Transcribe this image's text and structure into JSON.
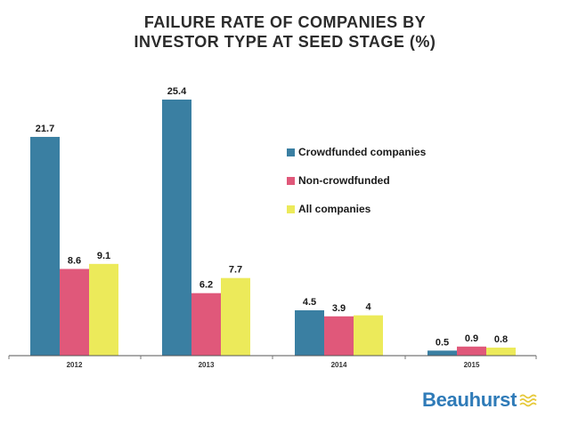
{
  "title_lines": [
    "FAILURE RATE OF COMPANIES BY",
    "INVESTOR TYPE AT SEED STAGE (%)"
  ],
  "brand": {
    "name": "Beauhurst",
    "color": "#2f7bb8"
  },
  "chart_data": {
    "type": "bar",
    "title": "FAILURE RATE OF COMPANIES BY INVESTOR TYPE AT SEED STAGE (%)",
    "categories": [
      "2012",
      "2013",
      "2014",
      "2015"
    ],
    "series": [
      {
        "name": "Crowdfunded companies",
        "color": "#3a7fa2",
        "values": [
          21.7,
          25.4,
          4.5,
          0.5
        ],
        "labels": [
          "21.7",
          "25.4",
          "4.5",
          "0.5"
        ]
      },
      {
        "name": "Non-crowdfunded",
        "color": "#e0587a",
        "values": [
          8.6,
          6.2,
          3.9,
          0.9
        ],
        "labels": [
          "8.6",
          "6.2",
          "3.9",
          "0.9"
        ]
      },
      {
        "name": "All companies",
        "color": "#ecea5a",
        "values": [
          9.1,
          7.7,
          4,
          0.8
        ],
        "labels": [
          "9.1",
          "7.7",
          "4",
          "0.8"
        ]
      }
    ],
    "xlabel": "",
    "ylabel": "",
    "ylim": [
      0,
      25.4
    ],
    "grid": false,
    "legend": "center"
  }
}
